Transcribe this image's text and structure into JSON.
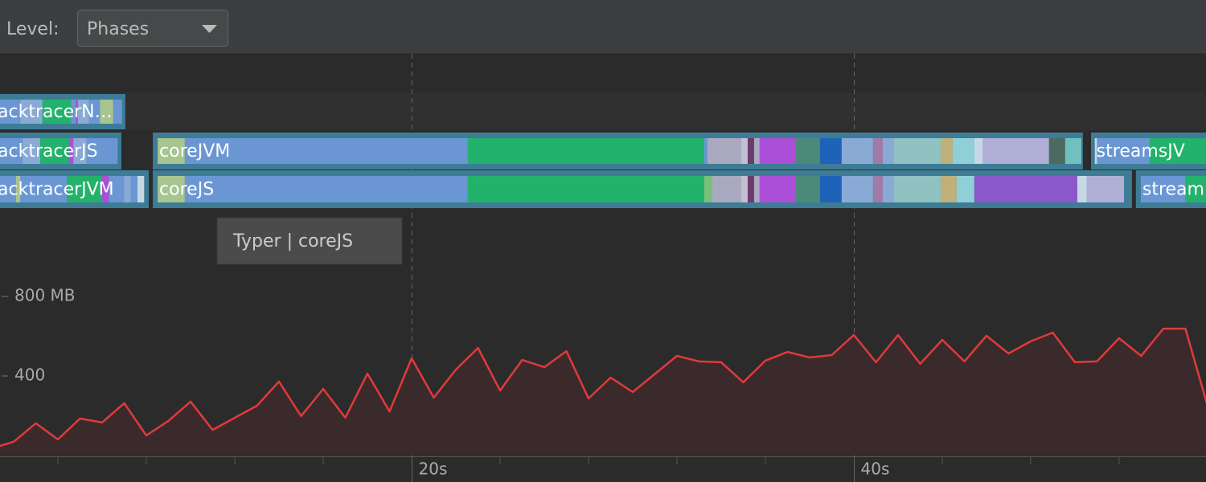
{
  "toolbar": {
    "level_label": "Level:",
    "dropdown": "Phases"
  },
  "tooltip": "Typer | coreJS",
  "timeline": {
    "tracks": [
      {
        "bars": [
          {
            "label": "acktracerN…",
            "start": 1.0,
            "end": 7.05,
            "segments": [
              {
                "color": "#6a97d4",
                "start": 1.0,
                "end": 2.3
              },
              {
                "color": "#8aaad6",
                "start": 2.3,
                "end": 3.3
              },
              {
                "color": "#23b26b",
                "start": 3.3,
                "end": 4.6
              },
              {
                "color": "#6a97d4",
                "start": 4.6,
                "end": 4.8
              },
              {
                "color": "#ac4fd8",
                "start": 4.8,
                "end": 4.9
              },
              {
                "color": "#8aaad6",
                "start": 4.9,
                "end": 5.4
              },
              {
                "color": "#6a97d4",
                "start": 5.4,
                "end": 5.9
              },
              {
                "color": "#a8c48f",
                "start": 5.9,
                "end": 6.5
              },
              {
                "color": "#6a97d4",
                "start": 6.5,
                "end": 6.9
              }
            ]
          }
        ]
      },
      {
        "bars": [
          {
            "label": "acktracerJS",
            "start": 1.0,
            "end": 6.87,
            "segments": [
              {
                "color": "#6a97d4",
                "start": 1.0,
                "end": 2.4
              },
              {
                "color": "#8aaad6",
                "start": 2.4,
                "end": 3.2
              },
              {
                "color": "#23b26b",
                "start": 3.2,
                "end": 4.5
              },
              {
                "color": "#ac4fd8",
                "start": 4.5,
                "end": 4.7
              },
              {
                "color": "#8aaad6",
                "start": 4.7,
                "end": 5.3
              },
              {
                "color": "#6a97d4",
                "start": 5.3,
                "end": 6.7
              }
            ]
          },
          {
            "label": "coreJVM",
            "start": 8.29,
            "end": 50.36,
            "segments": [
              {
                "color": "#a8c48f",
                "start": 8.51,
                "end": 9.74
              },
              {
                "color": "#6a97d4",
                "start": 9.74,
                "end": 22.54
              },
              {
                "color": "#23b26b",
                "start": 22.54,
                "end": 33.23
              },
              {
                "color": "#6a97d4",
                "start": 33.23,
                "end": 33.38
              },
              {
                "color": "#a9a9bf",
                "start": 33.38,
                "end": 34.91
              },
              {
                "color": "#c0c0d0",
                "start": 34.91,
                "end": 35.2
              },
              {
                "color": "#6c3a6c",
                "start": 35.2,
                "end": 35.49
              },
              {
                "color": "#a9a9bf",
                "start": 35.49,
                "end": 35.74
              },
              {
                "color": "#ac4fd8",
                "start": 35.74,
                "end": 37.38
              },
              {
                "color": "#4b8a78",
                "start": 37.38,
                "end": 38.47
              },
              {
                "color": "#1e62b9",
                "start": 38.47,
                "end": 39.45
              },
              {
                "color": "#8aaad6",
                "start": 39.45,
                "end": 40.87
              },
              {
                "color": "#a07aa8",
                "start": 40.87,
                "end": 41.31
              },
              {
                "color": "#8aaad6",
                "start": 41.31,
                "end": 41.82
              },
              {
                "color": "#8fc2c0",
                "start": 41.82,
                "end": 43.93
              },
              {
                "color": "#c0b07a",
                "start": 43.93,
                "end": 44.47
              },
              {
                "color": "#8fd0d8",
                "start": 44.47,
                "end": 45.45
              },
              {
                "color": "#c6d8e6",
                "start": 45.45,
                "end": 45.82
              },
              {
                "color": "#b0b0d6",
                "start": 45.82,
                "end": 48.83
              },
              {
                "color": "#4c6a60",
                "start": 48.83,
                "end": 49.56
              },
              {
                "color": "#70c0c0",
                "start": 49.56,
                "end": 50.29
              }
            ]
          },
          {
            "label": "streamsJV",
            "start": 50.73,
            "end": 56.5,
            "segments": [
              {
                "color": "#c6d8e6",
                "start": 50.9,
                "end": 51.0
              },
              {
                "color": "#6a97d4",
                "start": 51.0,
                "end": 53.38
              },
              {
                "color": "#23b26b",
                "start": 53.38,
                "end": 56.5
              }
            ]
          }
        ]
      },
      {
        "bars": [
          {
            "label": "acktracerJVM",
            "start": 1.0,
            "end": 8.11,
            "segments": [
              {
                "color": "#6a97d4",
                "start": 1.0,
                "end": 2.1
              },
              {
                "color": "#a8c48f",
                "start": 2.1,
                "end": 2.3
              },
              {
                "color": "#6a97d4",
                "start": 2.3,
                "end": 4.4
              },
              {
                "color": "#23b26b",
                "start": 4.4,
                "end": 6.0
              },
              {
                "color": "#ac4fd8",
                "start": 6.0,
                "end": 6.3
              },
              {
                "color": "#6a97d4",
                "start": 6.3,
                "end": 7.0
              },
              {
                "color": "#8aaad6",
                "start": 7.0,
                "end": 7.3
              },
              {
                "color": "#6a97d4",
                "start": 7.3,
                "end": 7.6
              },
              {
                "color": "#c6d8e6",
                "start": 7.6,
                "end": 7.9
              }
            ]
          },
          {
            "label": "coreJS",
            "start": 8.29,
            "end": 52.58,
            "segments": [
              {
                "color": "#a8c48f",
                "start": 8.51,
                "end": 9.74
              },
              {
                "color": "#6a97d4",
                "start": 9.74,
                "end": 22.54
              },
              {
                "color": "#23b26b",
                "start": 22.54,
                "end": 33.23
              },
              {
                "color": "#7ac07a",
                "start": 33.23,
                "end": 33.6
              },
              {
                "color": "#a9a9bf",
                "start": 33.6,
                "end": 34.91
              },
              {
                "color": "#c0c0d0",
                "start": 34.91,
                "end": 35.2
              },
              {
                "color": "#6c3a6c",
                "start": 35.2,
                "end": 35.49
              },
              {
                "color": "#a9a9bf",
                "start": 35.49,
                "end": 35.74
              },
              {
                "color": "#ac4fd8",
                "start": 35.74,
                "end": 37.38
              },
              {
                "color": "#4b8a78",
                "start": 37.38,
                "end": 38.47
              },
              {
                "color": "#1e62b9",
                "start": 38.47,
                "end": 39.45
              },
              {
                "color": "#8aaad6",
                "start": 39.45,
                "end": 40.87
              },
              {
                "color": "#a07aa8",
                "start": 40.87,
                "end": 41.31
              },
              {
                "color": "#8aaad6",
                "start": 41.31,
                "end": 41.82
              },
              {
                "color": "#8fc2c0",
                "start": 41.82,
                "end": 43.93
              },
              {
                "color": "#c0b07a",
                "start": 43.93,
                "end": 44.65
              },
              {
                "color": "#8fd0d8",
                "start": 44.65,
                "end": 45.45
              },
              {
                "color": "#8a58c8",
                "start": 45.45,
                "end": 50.11
              },
              {
                "color": "#c6d8e6",
                "start": 50.11,
                "end": 50.54
              },
              {
                "color": "#b0b0d6",
                "start": 50.54,
                "end": 52.22
              }
            ]
          },
          {
            "label": "stream",
            "start": 52.76,
            "end": 56.5,
            "segments": [
              {
                "color": "#6a97d4",
                "start": 52.98,
                "end": 55.0
              },
              {
                "color": "#23b26b",
                "start": 55.0,
                "end": 56.5
              }
            ]
          }
        ]
      }
    ]
  },
  "chart_data": {
    "type": "line",
    "color": "#e03a3a",
    "fill": "#3b2a2c",
    "x": [
      1,
      2,
      3,
      4,
      5,
      6,
      7,
      8,
      9,
      10,
      11,
      12,
      13,
      14,
      15,
      16,
      17,
      18,
      19,
      20,
      21,
      22,
      23,
      24,
      25,
      26,
      27,
      28,
      29,
      30,
      32,
      33,
      34,
      35,
      36,
      37,
      38,
      39,
      40,
      41,
      42,
      43,
      44,
      45,
      46,
      47,
      48,
      49,
      50,
      51,
      52,
      53,
      54,
      55,
      56
    ],
    "values": [
      35,
      69,
      162,
      81,
      186,
      166,
      263,
      101,
      174,
      271,
      129,
      190,
      250,
      372,
      198,
      335,
      190,
      412,
      222,
      489,
      291,
      432,
      541,
      327,
      481,
      444,
      525,
      287,
      392,
      319,
      501,
      473,
      469,
      368,
      477,
      521,
      493,
      505,
      606,
      469,
      606,
      461,
      582,
      473,
      602,
      513,
      574,
      618,
      469,
      473,
      590,
      501,
      638,
      638,
      250
    ],
    "xlim": [
      1.38,
      55.93
    ],
    "ylim": [
      0,
      1200
    ],
    "yticks": [
      400,
      {
        "value": 800,
        "label": "800 MB"
      }
    ],
    "xticks": [
      {
        "value": 20,
        "label": "20s"
      },
      {
        "value": 40,
        "label": "40s"
      }
    ],
    "xminor_ticks": [
      4,
      8,
      12,
      16,
      24,
      28,
      32,
      36,
      44,
      48,
      52
    ]
  }
}
